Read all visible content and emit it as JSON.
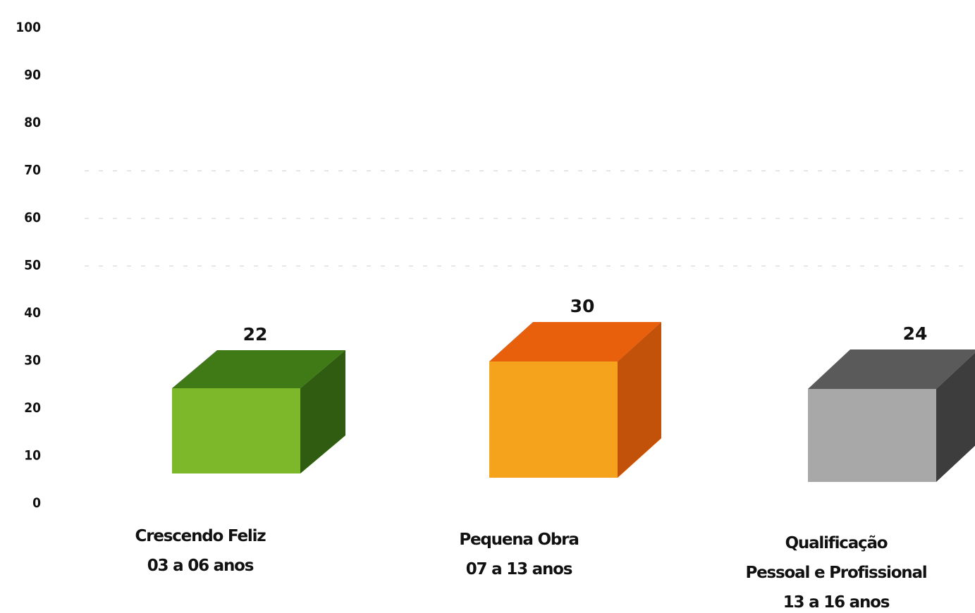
{
  "chart_data": {
    "type": "bar",
    "style": "3d-cube",
    "title": "",
    "xlabel": "",
    "ylabel": "",
    "ylim": [
      0,
      100
    ],
    "yticks": [
      0,
      10,
      20,
      30,
      40,
      50,
      60,
      70,
      80,
      90,
      100
    ],
    "grid": true,
    "legend": "none",
    "categories": [
      "Crescendo Feliz\n03 a 06 anos",
      "Pequena Obra\n07 a 13 anos",
      "Qualificação\nPessoal e Profissional\n13 a 16 anos"
    ],
    "values": [
      22,
      30,
      24
    ],
    "value_labels": [
      "22",
      "30",
      "24"
    ],
    "bars": [
      {
        "category_lines": [
          "Crescendo Feliz",
          "03 a 06 anos"
        ],
        "value": 22,
        "label": "22",
        "colors": {
          "front": "#7cb82a",
          "top": "#3f7a16",
          "side": "#2f5c10"
        }
      },
      {
        "category_lines": [
          "Pequena Obra",
          "07 a 13 anos"
        ],
        "value": 30,
        "label": "30",
        "colors": {
          "front": "#f5a21c",
          "top": "#e85f0c",
          "side": "#c2510a"
        }
      },
      {
        "category_lines": [
          "Qualificação",
          "Pessoal e Profissional",
          "13 a 16 anos"
        ],
        "value": 24,
        "label": "24",
        "colors": {
          "front": "#a8a8a8",
          "top": "#5a5a5a",
          "side": "#3d3d3d"
        }
      }
    ]
  }
}
